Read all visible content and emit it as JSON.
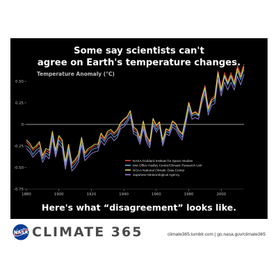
{
  "headline": {
    "line1": "Some say scientists can't",
    "line2": "agree on Earth's temperature changes.",
    "bottom": "Here's what “disagreement” looks like."
  },
  "footer": {
    "brand": "CLIMATE 365",
    "links": "climate365.tumblr.com  |  go.nasa.gov/climate365",
    "logo_icon": "nasa-meatball-logo"
  },
  "chart_data": {
    "type": "line",
    "ylabel": "Temperature Anomaly (°C)",
    "xlim": [
      1880,
      2014
    ],
    "ylim": [
      -0.75,
      0.5
    ],
    "yticks": [
      0.5,
      0.25,
      0,
      -0.25,
      -0.5,
      -0.75
    ],
    "ytick_labels": [
      "0.50",
      "0.25",
      "0",
      "-0.25",
      "-0.50",
      "-0.75"
    ],
    "xticks": [
      1880,
      1900,
      1920,
      1940,
      1960,
      1980,
      2000
    ],
    "xtick_labels": [
      "1880",
      "1900",
      "1920",
      "1940",
      "1960",
      "1980",
      "2000"
    ],
    "zero_line": true,
    "legend_position": "lower-right",
    "x": [
      1880,
      1882,
      1884,
      1886,
      1888,
      1890,
      1892,
      1894,
      1896,
      1898,
      1900,
      1902,
      1904,
      1906,
      1908,
      1910,
      1912,
      1914,
      1916,
      1918,
      1920,
      1922,
      1924,
      1926,
      1928,
      1930,
      1932,
      1934,
      1936,
      1938,
      1940,
      1942,
      1944,
      1946,
      1948,
      1950,
      1952,
      1954,
      1956,
      1958,
      1960,
      1962,
      1964,
      1966,
      1968,
      1970,
      1972,
      1974,
      1976,
      1978,
      1980,
      1982,
      1984,
      1986,
      1988,
      1990,
      1992,
      1994,
      1996,
      1998,
      2000,
      2002,
      2004,
      2006,
      2008,
      2010,
      2012,
      2014
    ],
    "series": [
      {
        "name": "NASA Goddard Institute for Space Studies",
        "color": "#e8413a",
        "values": [
          -0.2,
          -0.25,
          -0.3,
          -0.27,
          -0.22,
          -0.38,
          -0.3,
          -0.33,
          -0.1,
          -0.32,
          -0.15,
          -0.2,
          -0.45,
          -0.25,
          -0.47,
          -0.43,
          -0.37,
          -0.17,
          -0.35,
          -0.3,
          -0.28,
          -0.25,
          -0.25,
          -0.12,
          -0.18,
          -0.1,
          -0.08,
          -0.12,
          -0.08,
          0.0,
          0.05,
          0.08,
          0.15,
          -0.05,
          -0.08,
          -0.18,
          0.02,
          -0.15,
          -0.22,
          0.06,
          -0.03,
          0.02,
          -0.2,
          -0.06,
          -0.08,
          0.03,
          0.0,
          -0.08,
          -0.12,
          0.05,
          0.26,
          0.13,
          0.15,
          0.12,
          0.32,
          0.45,
          0.2,
          0.3,
          0.33,
          0.62,
          0.42,
          0.6,
          0.5,
          0.6,
          0.5,
          0.68,
          0.58,
          0.7
        ]
      },
      {
        "name": "Met Office Hadley Centre/Climatic Research Unit",
        "color": "#5aa7e3",
        "values": [
          -0.25,
          -0.28,
          -0.35,
          -0.3,
          -0.27,
          -0.4,
          -0.33,
          -0.36,
          -0.13,
          -0.35,
          -0.18,
          -0.23,
          -0.48,
          -0.28,
          -0.5,
          -0.46,
          -0.4,
          -0.2,
          -0.38,
          -0.35,
          -0.3,
          -0.28,
          -0.27,
          -0.15,
          -0.2,
          -0.13,
          -0.1,
          -0.15,
          -0.12,
          -0.02,
          0.0,
          0.05,
          0.12,
          -0.08,
          -0.1,
          -0.2,
          -0.02,
          -0.18,
          -0.24,
          0.02,
          -0.06,
          0.0,
          -0.22,
          -0.08,
          -0.1,
          0.0,
          -0.03,
          -0.1,
          -0.15,
          0.02,
          0.22,
          0.1,
          0.12,
          0.1,
          0.28,
          0.4,
          0.15,
          0.26,
          0.28,
          0.58,
          0.38,
          0.55,
          0.46,
          0.55,
          0.45,
          0.62,
          0.52,
          0.64
        ]
      },
      {
        "name": "NOAA National Climatic Data Center",
        "color": "#e7e04a",
        "values": [
          -0.18,
          -0.22,
          -0.28,
          -0.25,
          -0.2,
          -0.36,
          -0.28,
          -0.3,
          -0.08,
          -0.3,
          -0.13,
          -0.18,
          -0.43,
          -0.23,
          -0.45,
          -0.41,
          -0.35,
          -0.15,
          -0.33,
          -0.28,
          -0.26,
          -0.23,
          -0.23,
          -0.1,
          -0.16,
          -0.08,
          -0.06,
          -0.1,
          -0.06,
          0.02,
          0.06,
          0.09,
          0.16,
          -0.03,
          -0.06,
          -0.16,
          0.04,
          -0.13,
          -0.2,
          0.07,
          -0.01,
          0.03,
          -0.18,
          -0.05,
          -0.07,
          0.04,
          0.01,
          -0.07,
          -0.11,
          0.06,
          0.25,
          0.12,
          0.14,
          0.11,
          0.3,
          0.43,
          0.18,
          0.28,
          0.31,
          0.6,
          0.4,
          0.57,
          0.48,
          0.57,
          0.47,
          0.65,
          0.55,
          0.67
        ]
      },
      {
        "name": "Japanese Meteorological Agency",
        "color": "#9a7fd6",
        "values": [
          -0.28,
          -0.32,
          -0.38,
          -0.34,
          -0.3,
          -0.44,
          -0.36,
          -0.4,
          -0.17,
          -0.38,
          -0.22,
          -0.27,
          -0.52,
          -0.32,
          -0.54,
          -0.5,
          -0.44,
          -0.24,
          -0.42,
          -0.38,
          -0.34,
          -0.32,
          -0.31,
          -0.19,
          -0.24,
          -0.17,
          -0.14,
          -0.19,
          -0.15,
          -0.05,
          -0.03,
          0.02,
          0.09,
          -0.11,
          -0.13,
          -0.23,
          -0.05,
          -0.21,
          -0.27,
          -0.01,
          -0.09,
          -0.03,
          -0.25,
          -0.11,
          -0.13,
          -0.03,
          -0.06,
          -0.13,
          -0.18,
          -0.01,
          0.18,
          0.06,
          0.08,
          0.06,
          0.24,
          0.36,
          0.11,
          0.22,
          0.24,
          0.52,
          0.33,
          0.49,
          0.4,
          0.49,
          0.4,
          0.56,
          0.46,
          0.58
        ]
      }
    ]
  }
}
